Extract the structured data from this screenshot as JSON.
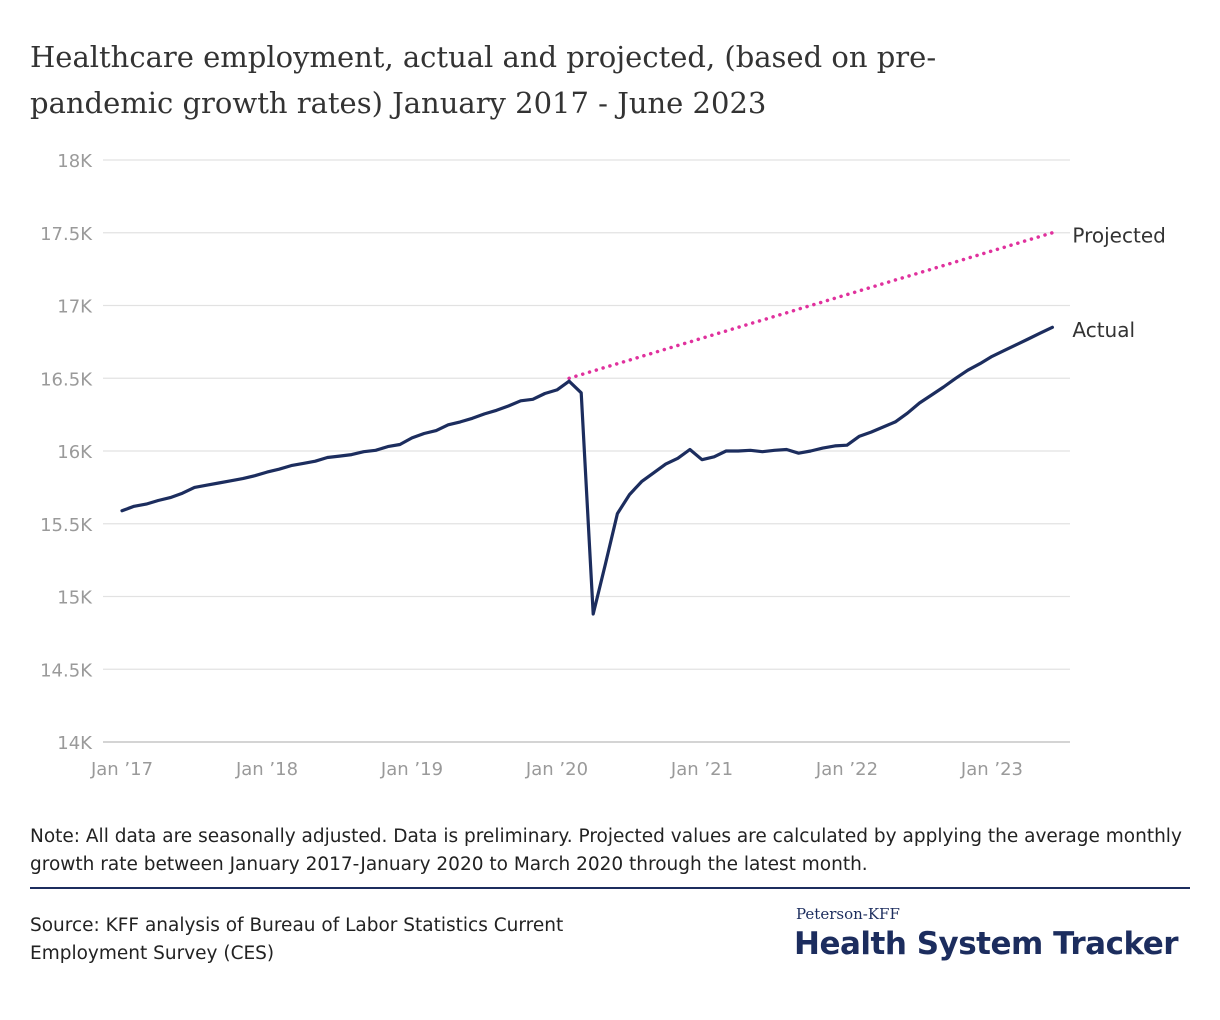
{
  "chart_data": {
    "type": "line",
    "title": "Healthcare employment, actual and projected, (based on pre-pandemic growth rates) January 2017 - June 2023",
    "categories": [
      "Jan ’17",
      null,
      null,
      null,
      null,
      null,
      null,
      null,
      null,
      null,
      null,
      null,
      "Jan ’18",
      null,
      null,
      null,
      null,
      null,
      null,
      null,
      null,
      null,
      null,
      null,
      "Jan ’19",
      null,
      null,
      null,
      null,
      null,
      null,
      null,
      null,
      null,
      null,
      null,
      "Jan ’20",
      null,
      null,
      null,
      null,
      null,
      null,
      null,
      null,
      null,
      null,
      null,
      "Jan ’21",
      null,
      null,
      null,
      null,
      null,
      null,
      null,
      null,
      null,
      null,
      null,
      "Jan ’22",
      null,
      null,
      null,
      null,
      null,
      null,
      null,
      null,
      null,
      null,
      null,
      "Jan ’23",
      null,
      null,
      null,
      null,
      null
    ],
    "series": [
      {
        "name": "Projected",
        "color": "#e0319d",
        "dashed": true,
        "values": [
          null,
          null,
          null,
          null,
          null,
          null,
          null,
          null,
          null,
          null,
          null,
          null,
          null,
          null,
          null,
          null,
          null,
          null,
          null,
          null,
          null,
          null,
          null,
          null,
          null,
          null,
          null,
          null,
          null,
          null,
          null,
          null,
          null,
          null,
          null,
          null,
          null,
          16500,
          16525,
          16550,
          16575,
          16600,
          16625,
          16650,
          16675,
          16700,
          16725,
          16750,
          16775,
          16800,
          16825,
          16850,
          16875,
          16900,
          16925,
          16950,
          16975,
          17000,
          17025,
          17050,
          17075,
          17100,
          17125,
          17150,
          17175,
          17200,
          17225,
          17250,
          17275,
          17300,
          17325,
          17350,
          17375,
          17400,
          17425,
          17450,
          17475,
          17500
        ]
      },
      {
        "name": "Actual",
        "color": "#1c2d5e",
        "values": [
          15590,
          15620,
          15635,
          15660,
          15680,
          15710,
          15750,
          15765,
          15780,
          15795,
          15810,
          15830,
          15855,
          15875,
          15900,
          15915,
          15930,
          15955,
          15965,
          15975,
          15995,
          16005,
          16030,
          16045,
          16090,
          16120,
          16140,
          16180,
          16200,
          16225,
          16255,
          16280,
          16310,
          16345,
          16355,
          16395,
          16420,
          16480,
          16400,
          14880,
          15220,
          15570,
          15700,
          15790,
          15850,
          15910,
          15950,
          16010,
          15940,
          15960,
          16000,
          16000,
          16005,
          15995,
          16005,
          16010,
          15985,
          16000,
          16020,
          16035,
          16040,
          16100,
          16130,
          16165,
          16200,
          16260,
          16330,
          16385,
          16440,
          16500,
          16555,
          16600,
          16650,
          16690,
          16730,
          16770,
          16810,
          16850
        ]
      }
    ],
    "ylim": [
      14000,
      18000
    ],
    "yticks": [
      {
        "value": 14000,
        "label": "14K"
      },
      {
        "value": 14500,
        "label": "14.5K"
      },
      {
        "value": 15000,
        "label": "15K"
      },
      {
        "value": 15500,
        "label": "15.5K"
      },
      {
        "value": 16000,
        "label": "16K"
      },
      {
        "value": 16500,
        "label": "16.5K"
      },
      {
        "value": 17000,
        "label": "17K"
      },
      {
        "value": 17500,
        "label": "17.5K"
      },
      {
        "value": 18000,
        "label": "18K"
      }
    ],
    "grid": true,
    "note": "Note: All data are seasonally adjusted. Data is preliminary. Projected values are calculated by applying the average monthly growth rate between January 2017-January 2020 to March 2020 through the latest month.",
    "source": "Source: KFF analysis of Bureau of Labor Statistics Current Employment Survey (CES)",
    "brand_top": "Peterson-KFF",
    "brand": "Health System Tracker"
  }
}
